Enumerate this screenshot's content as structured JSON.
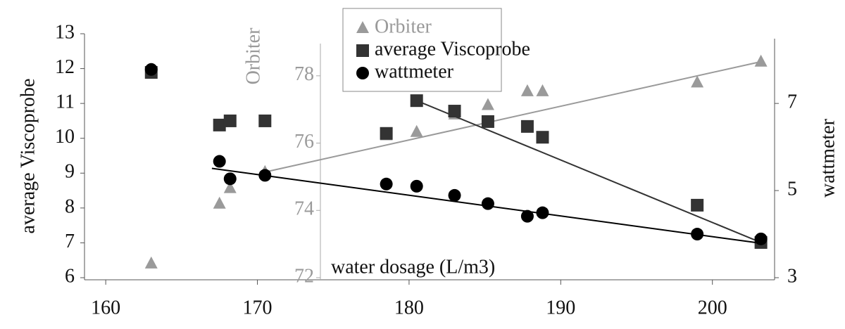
{
  "chart_data": {
    "type": "scatter",
    "x_label": "water dosage (L/m3)",
    "y_label": "average Viscoprobe",
    "y2_label": "Orbiter",
    "y3_label": "wattmeter",
    "x": [
      163,
      167.5,
      168.2,
      170.5,
      178.5,
      180.5,
      183,
      185.2,
      187.8,
      188.8,
      199,
      203.2
    ],
    "xlim": [
      158.6,
      204.1
    ],
    "xticks": [
      160,
      170,
      180,
      190,
      200
    ],
    "ylim": [
      6,
      13
    ],
    "yticks": [
      6,
      7,
      8,
      9,
      10,
      11,
      12,
      13
    ],
    "y2lim": [
      72,
      79.25
    ],
    "y2ticks": [
      72,
      74,
      76,
      78
    ],
    "y3lim": [
      3,
      8.6
    ],
    "y3ticks": [
      3,
      5,
      7
    ],
    "series": [
      {
        "name": "Orbiter",
        "color": "#9a9a9a",
        "marker": "triangle",
        "axis": "y2",
        "values": [
          72.42,
          74.2,
          74.66,
          75.14,
          76.23,
          76.33,
          76.85,
          77.13,
          77.54,
          77.54,
          77.8,
          78.42
        ],
        "trend": {
          "x": [
            170.5,
            203.2
          ],
          "values": [
            75.14,
            78.42
          ]
        }
      },
      {
        "name": "average Viscoprobe",
        "color": "#333333",
        "marker": "square",
        "axis": "y",
        "values": [
          11.89,
          10.38,
          10.5,
          10.5,
          10.14,
          11.08,
          10.78,
          10.48,
          10.34,
          10.03,
          8.08,
          7.01
        ],
        "trend": {
          "x": [
            180.5,
            203.2
          ],
          "values": [
            11.08,
            7.01
          ]
        }
      },
      {
        "name": "wattmeter",
        "color": "#000000",
        "marker": "circle",
        "axis": "y3",
        "values": [
          7.78,
          5.67,
          5.27,
          5.35,
          5.15,
          5.1,
          4.89,
          4.7,
          4.41,
          4.49,
          4.0,
          3.89
        ],
        "trend": {
          "x": [
            167,
            203.2
          ],
          "values": [
            5.51,
            3.79
          ]
        }
      }
    ]
  }
}
